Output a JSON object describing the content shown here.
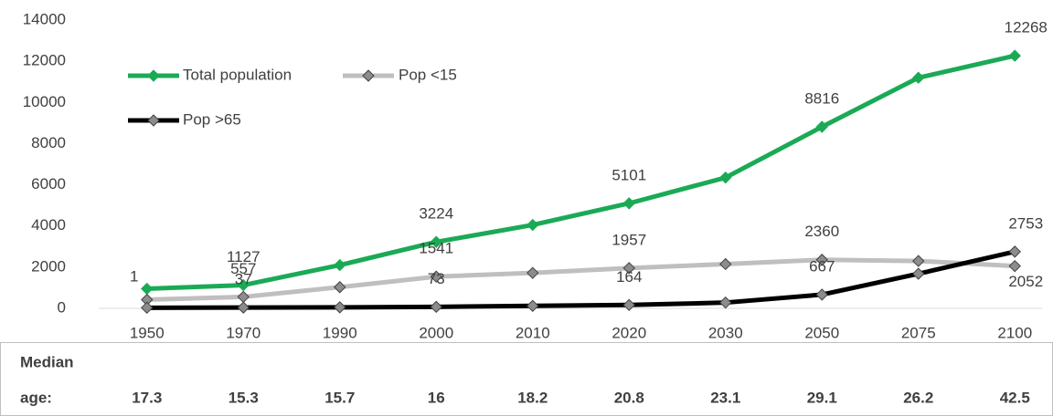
{
  "chart_data": {
    "type": "line",
    "categories": [
      "1950",
      "1970",
      "1990",
      "2000",
      "2010",
      "2020",
      "2030",
      "2050",
      "2075",
      "2100"
    ],
    "series": [
      {
        "name": "Total population",
        "color": "#1aaa55",
        "marker_color": "#1aaa55",
        "values": [
          950,
          1127,
          2100,
          3224,
          4050,
          5101,
          6350,
          8816,
          11200,
          12268
        ],
        "value_labels": [
          null,
          "1127",
          null,
          "3224",
          null,
          "5101",
          null,
          "8816",
          null,
          "12268"
        ]
      },
      {
        "name": "Pop <15",
        "color": "#bfbfbf",
        "marker_color": "#8c8c8c",
        "values": [
          420,
          557,
          1030,
          1541,
          1720,
          1957,
          2150,
          2360,
          2300,
          2052
        ],
        "value_labels": [
          null,
          "557",
          null,
          "1541",
          null,
          "1957",
          null,
          "2360",
          null,
          "2052"
        ]
      },
      {
        "name": "Pop  >65",
        "color": "#000000",
        "marker_color": "#8c8c8c",
        "values": [
          30,
          37,
          50,
          73,
          120,
          164,
          280,
          667,
          1680,
          2753
        ],
        "value_labels": [
          null,
          "37",
          null,
          "73",
          null,
          "164",
          null,
          "667",
          null,
          "2753"
        ]
      }
    ],
    "annotations": [
      "1"
    ],
    "ylim": [
      0,
      14000
    ],
    "yticks": [
      0,
      2000,
      4000,
      6000,
      8000,
      10000,
      12000,
      14000
    ],
    "grid": false
  },
  "table": {
    "label": [
      "Median",
      "age:"
    ],
    "values": [
      17.3,
      15.3,
      15.7,
      16,
      18.2,
      20.8,
      23.1,
      29.1,
      26.2,
      42.5
    ]
  }
}
